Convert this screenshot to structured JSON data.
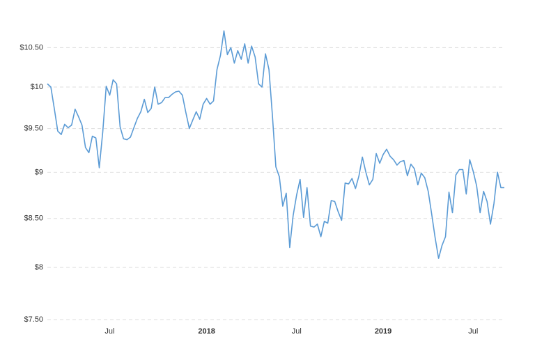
{
  "chart_data": {
    "type": "line",
    "log_scale": true,
    "grid": true,
    "color": "#5b9bd5",
    "ylim": [
      7.5,
      10.9
    ],
    "yticks": [
      {
        "value": 7.5,
        "label": "$7.50"
      },
      {
        "value": 8,
        "label": "$8"
      },
      {
        "value": 8.5,
        "label": "$8.50"
      },
      {
        "value": 9,
        "label": "$9"
      },
      {
        "value": 9.5,
        "label": "$9.50"
      },
      {
        "value": 10,
        "label": "$10"
      },
      {
        "value": 10.5,
        "label": "$10.50"
      }
    ],
    "categories": [
      null,
      null,
      null,
      null,
      null,
      null,
      null,
      null,
      null,
      null,
      null,
      null,
      null,
      null,
      null,
      null,
      null,
      null,
      "Jul",
      null,
      null,
      null,
      null,
      null,
      null,
      null,
      null,
      null,
      null,
      null,
      null,
      null,
      null,
      null,
      null,
      null,
      null,
      null,
      null,
      null,
      null,
      null,
      null,
      null,
      null,
      null,
      "2018",
      null,
      null,
      null,
      null,
      null,
      null,
      null,
      null,
      null,
      null,
      null,
      null,
      null,
      null,
      null,
      null,
      null,
      null,
      null,
      null,
      null,
      null,
      null,
      null,
      null,
      "Jul",
      null,
      null,
      null,
      null,
      null,
      null,
      null,
      null,
      null,
      null,
      null,
      null,
      null,
      null,
      null,
      null,
      null,
      null,
      null,
      null,
      null,
      null,
      null,
      null,
      "2019",
      null,
      null,
      null,
      null,
      null,
      null,
      null,
      null,
      null,
      null,
      null,
      null,
      null,
      null,
      null,
      null,
      null,
      null,
      null,
      null,
      null,
      null,
      null,
      null,
      null,
      "Jul",
      null,
      null,
      null,
      null,
      null,
      null,
      null,
      null,
      null
    ],
    "values": [
      10.04,
      10.0,
      9.74,
      9.47,
      9.43,
      9.55,
      9.51,
      9.54,
      9.73,
      9.64,
      9.54,
      9.28,
      9.22,
      9.41,
      9.39,
      9.05,
      9.46,
      10.01,
      9.9,
      10.09,
      10.04,
      9.52,
      9.38,
      9.37,
      9.4,
      9.51,
      9.62,
      9.7,
      9.85,
      9.69,
      9.74,
      10.0,
      9.79,
      9.81,
      9.87,
      9.87,
      9.91,
      9.94,
      9.95,
      9.9,
      9.69,
      9.5,
      9.6,
      9.7,
      9.61,
      9.79,
      9.86,
      9.79,
      9.83,
      10.22,
      10.4,
      10.72,
      10.41,
      10.5,
      10.3,
      10.46,
      10.35,
      10.55,
      10.3,
      10.52,
      10.38,
      10.04,
      10.0,
      10.42,
      10.22,
      9.66,
      9.06,
      8.95,
      8.63,
      8.77,
      8.2,
      8.53,
      8.75,
      8.92,
      8.51,
      8.83,
      8.42,
      8.41,
      8.44,
      8.31,
      8.47,
      8.45,
      8.69,
      8.68,
      8.57,
      8.48,
      8.88,
      8.87,
      8.93,
      8.82,
      8.96,
      9.17,
      9.0,
      8.86,
      8.92,
      9.21,
      9.1,
      9.2,
      9.26,
      9.18,
      9.14,
      9.08,
      9.12,
      9.13,
      8.96,
      9.09,
      9.04,
      8.86,
      8.99,
      8.94,
      8.79,
      8.55,
      8.3,
      8.09,
      8.22,
      8.31,
      8.78,
      8.56,
      8.97,
      9.03,
      9.03,
      8.76,
      9.14,
      9.01,
      8.85,
      8.56,
      8.79,
      8.68,
      8.44,
      8.66,
      9.0,
      8.83,
      8.83
    ]
  }
}
